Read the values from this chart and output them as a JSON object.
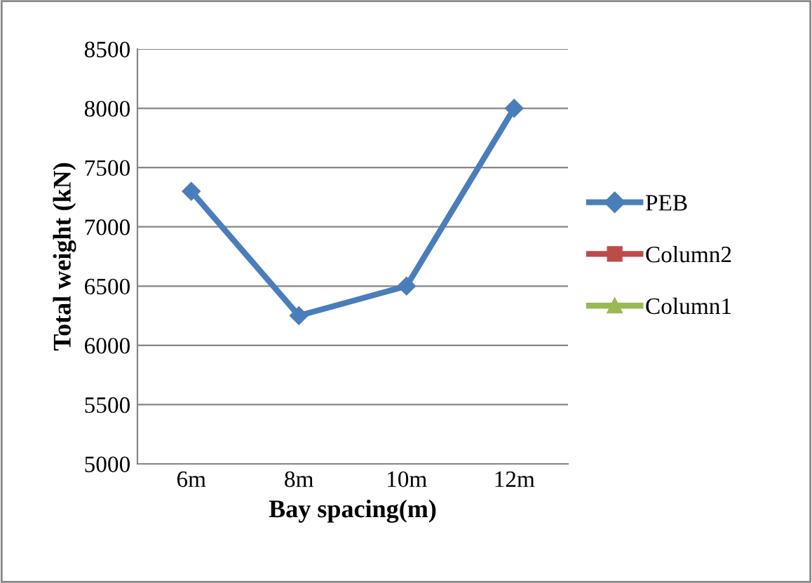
{
  "chart_data": {
    "type": "line",
    "xlabel": "Bay spacing(m)",
    "ylabel": "Total weight (kN)",
    "categories": [
      "6m",
      "8m",
      "10m",
      "12m"
    ],
    "series": [
      {
        "name": "PEB",
        "color": "#4a7ebb",
        "marker": "diamond",
        "values": [
          7300,
          6250,
          6500,
          8000
        ]
      },
      {
        "name": "Column2",
        "color": "#be4b48",
        "marker": "square",
        "values": [
          null,
          null,
          null,
          null
        ]
      },
      {
        "name": "Column1",
        "color": "#98b954",
        "marker": "triangle",
        "values": [
          null,
          null,
          null,
          null
        ]
      }
    ],
    "ylim": [
      5000,
      8500
    ],
    "yticks": [
      5000,
      5500,
      6000,
      6500,
      7000,
      7500,
      8000,
      8500
    ],
    "grid": "y",
    "legend": "right",
    "line_style": "solid"
  }
}
